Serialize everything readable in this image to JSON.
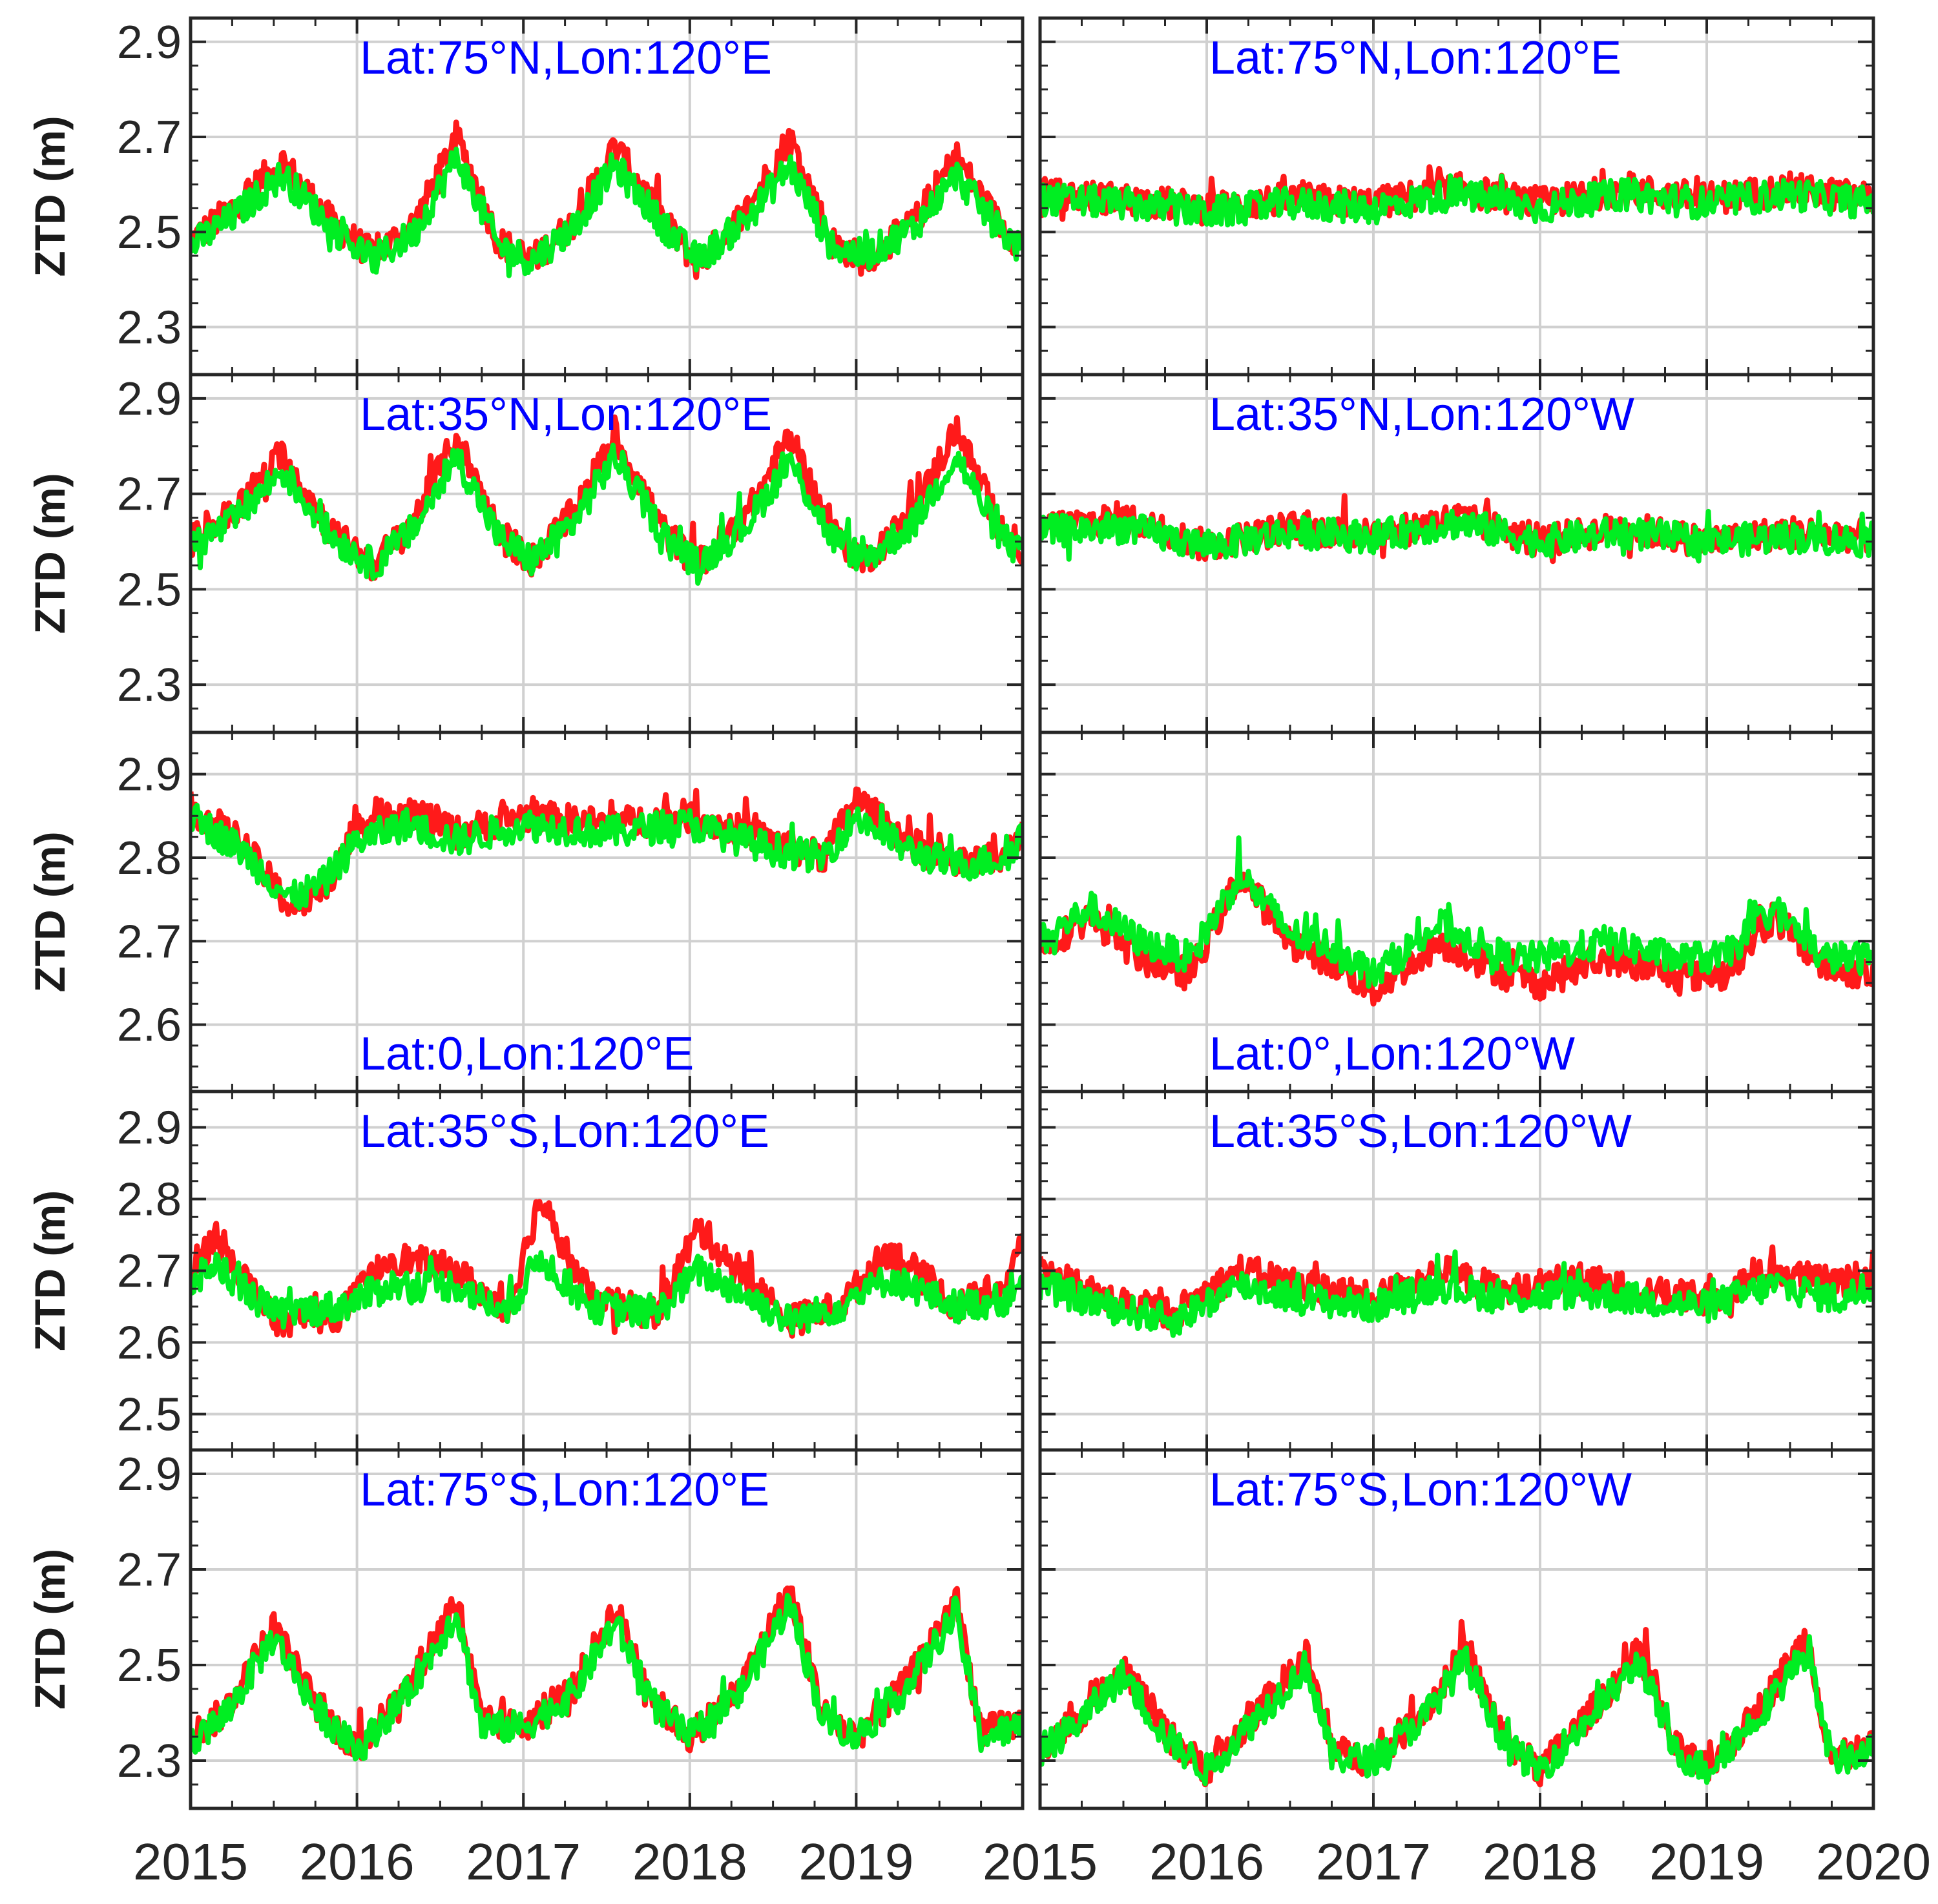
{
  "colors": {
    "red_series": "#ff1a1a",
    "green_series": "#00ee22",
    "title_text": "#0000ff",
    "axis": "#262626",
    "grid": "#d0d0d0"
  },
  "chart_data": [
    {
      "type": "line",
      "title": "Lat:75°N,Lon:120°E",
      "title_pos": "top",
      "ylabel": "ZTD (m)",
      "ylim": [
        2.2,
        2.95
      ],
      "yticks": [
        "2.3",
        "2.5",
        "2.7",
        "2.9"
      ],
      "xlim": [
        2015,
        2020
      ],
      "xticks": [
        "2015",
        "2016",
        "2017",
        "2018",
        "2019"
      ],
      "series": [
        {
          "name": "red",
          "x": [
            2015.0,
            2015.25,
            2015.55,
            2015.85,
            2016.1,
            2016.35,
            2016.6,
            2016.85,
            2017.05,
            2017.3,
            2017.55,
            2017.85,
            2018.05,
            2018.35,
            2018.6,
            2018.85,
            2019.05,
            2019.35,
            2019.6,
            2019.85,
            2020.0
          ],
          "y": [
            2.48,
            2.55,
            2.65,
            2.52,
            2.45,
            2.52,
            2.7,
            2.48,
            2.44,
            2.52,
            2.68,
            2.52,
            2.43,
            2.55,
            2.7,
            2.48,
            2.44,
            2.52,
            2.66,
            2.52,
            2.47
          ]
        },
        {
          "name": "green",
          "x": [
            2015.0,
            2015.25,
            2015.55,
            2015.85,
            2016.1,
            2016.35,
            2016.6,
            2016.85,
            2017.05,
            2017.3,
            2017.55,
            2017.85,
            2018.05,
            2018.35,
            2018.6,
            2018.85,
            2019.05,
            2019.35,
            2019.6,
            2019.85,
            2020.0
          ],
          "y": [
            2.47,
            2.53,
            2.62,
            2.51,
            2.44,
            2.5,
            2.66,
            2.47,
            2.44,
            2.51,
            2.64,
            2.51,
            2.44,
            2.53,
            2.64,
            2.47,
            2.45,
            2.51,
            2.62,
            2.51,
            2.46
          ]
        }
      ]
    },
    {
      "type": "line",
      "title": "Lat:75°N,Lon:120°E",
      "title_pos": "top",
      "ylabel": "",
      "ylim": [
        2.2,
        2.95
      ],
      "yticks": [
        "2.3",
        "2.5",
        "2.7",
        "2.9"
      ],
      "xlim": [
        2015,
        2020
      ],
      "xticks": [
        "2015",
        "2016",
        "2017",
        "2018",
        "2019",
        "2020"
      ],
      "series": [
        {
          "name": "red",
          "x": [
            2015.0,
            2015.5,
            2016.0,
            2016.5,
            2017.0,
            2017.5,
            2018.0,
            2018.5,
            2019.0,
            2019.5,
            2020.0
          ],
          "y": [
            2.58,
            2.57,
            2.55,
            2.57,
            2.56,
            2.59,
            2.56,
            2.59,
            2.57,
            2.59,
            2.57
          ]
        },
        {
          "name": "green",
          "x": [
            2015.0,
            2015.5,
            2016.0,
            2016.5,
            2017.0,
            2017.5,
            2018.0,
            2018.5,
            2019.0,
            2019.5,
            2020.0
          ],
          "y": [
            2.57,
            2.56,
            2.54,
            2.56,
            2.55,
            2.58,
            2.55,
            2.58,
            2.56,
            2.58,
            2.56
          ]
        }
      ]
    },
    {
      "type": "line",
      "title": "Lat:35°N,Lon:120°E",
      "title_pos": "top",
      "ylabel": "ZTD (m)",
      "ylim": [
        2.2,
        2.95
      ],
      "yticks": [
        "2.3",
        "2.5",
        "2.7",
        "2.9"
      ],
      "xlim": [
        2015,
        2020
      ],
      "xticks": [],
      "series": [
        {
          "name": "red",
          "x": [
            2015.0,
            2015.25,
            2015.55,
            2015.85,
            2016.1,
            2016.35,
            2016.6,
            2016.85,
            2017.05,
            2017.3,
            2017.55,
            2017.85,
            2018.05,
            2018.35,
            2018.6,
            2018.85,
            2019.05,
            2019.35,
            2019.6,
            2019.85,
            2020.0
          ],
          "y": [
            2.6,
            2.66,
            2.78,
            2.62,
            2.55,
            2.65,
            2.82,
            2.62,
            2.56,
            2.66,
            2.82,
            2.62,
            2.55,
            2.66,
            2.82,
            2.62,
            2.56,
            2.66,
            2.84,
            2.64,
            2.58
          ]
        },
        {
          "name": "green",
          "x": [
            2015.0,
            2015.25,
            2015.55,
            2015.85,
            2016.1,
            2016.35,
            2016.6,
            2016.85,
            2017.05,
            2017.3,
            2017.55,
            2017.85,
            2018.05,
            2018.35,
            2018.6,
            2018.85,
            2019.05,
            2019.35,
            2019.6,
            2019.85,
            2020.0
          ],
          "y": [
            2.59,
            2.64,
            2.75,
            2.61,
            2.55,
            2.63,
            2.78,
            2.61,
            2.56,
            2.64,
            2.78,
            2.61,
            2.55,
            2.64,
            2.77,
            2.61,
            2.56,
            2.64,
            2.78,
            2.62,
            2.57
          ]
        }
      ]
    },
    {
      "type": "line",
      "title": "Lat:35°N,Lon:120°W",
      "title_pos": "top",
      "ylabel": "",
      "ylim": [
        2.2,
        2.95
      ],
      "yticks": [
        "2.3",
        "2.5",
        "2.7",
        "2.9"
      ],
      "xlim": [
        2015,
        2020
      ],
      "xticks": [],
      "series": [
        {
          "name": "red",
          "x": [
            2015.0,
            2015.5,
            2016.0,
            2016.5,
            2017.0,
            2017.5,
            2018.0,
            2018.5,
            2019.0,
            2019.5,
            2020.0
          ],
          "y": [
            2.63,
            2.65,
            2.59,
            2.63,
            2.61,
            2.65,
            2.6,
            2.63,
            2.6,
            2.62,
            2.61
          ]
        },
        {
          "name": "green",
          "x": [
            2015.0,
            2015.5,
            2016.0,
            2016.5,
            2017.0,
            2017.5,
            2018.0,
            2018.5,
            2019.0,
            2019.5,
            2020.0
          ],
          "y": [
            2.62,
            2.63,
            2.59,
            2.62,
            2.61,
            2.64,
            2.6,
            2.62,
            2.6,
            2.61,
            2.6
          ]
        }
      ]
    },
    {
      "type": "line",
      "title": "Lat:0,Lon:120°E",
      "title_pos": "bottom",
      "ylabel": "ZTD (m)",
      "ylim": [
        2.52,
        2.95
      ],
      "yticks": [
        "2.6",
        "2.7",
        "2.8",
        "2.9"
      ],
      "xlim": [
        2015,
        2020
      ],
      "xticks": [],
      "series": [
        {
          "name": "red",
          "x": [
            2015.0,
            2015.3,
            2015.6,
            2015.8,
            2016.0,
            2016.3,
            2016.6,
            2017.0,
            2017.5,
            2018.0,
            2018.5,
            2018.8,
            2019.0,
            2019.3,
            2019.6,
            2019.9,
            2020.0
          ],
          "y": [
            2.86,
            2.82,
            2.74,
            2.76,
            2.84,
            2.86,
            2.83,
            2.85,
            2.84,
            2.85,
            2.82,
            2.8,
            2.87,
            2.82,
            2.79,
            2.8,
            2.84
          ]
        },
        {
          "name": "green",
          "x": [
            2015.0,
            2015.3,
            2015.6,
            2015.8,
            2016.0,
            2016.3,
            2016.6,
            2017.0,
            2017.5,
            2018.0,
            2018.5,
            2018.8,
            2019.0,
            2019.3,
            2019.6,
            2019.9,
            2020.0
          ],
          "y": [
            2.85,
            2.81,
            2.75,
            2.77,
            2.82,
            2.84,
            2.82,
            2.84,
            2.83,
            2.84,
            2.81,
            2.8,
            2.85,
            2.81,
            2.79,
            2.8,
            2.83
          ]
        }
      ]
    },
    {
      "type": "line",
      "title": "Lat:0°,Lon:120°W",
      "title_pos": "bottom",
      "ylabel": "",
      "ylim": [
        2.52,
        2.95
      ],
      "yticks": [
        "2.6",
        "2.7",
        "2.8",
        "2.9"
      ],
      "xlim": [
        2015,
        2020
      ],
      "xticks": [],
      "series": [
        {
          "name": "red",
          "x": [
            2015.0,
            2015.3,
            2015.6,
            2015.9,
            2016.2,
            2016.5,
            2016.8,
            2017.0,
            2017.4,
            2017.8,
            2018.0,
            2018.4,
            2018.8,
            2019.1,
            2019.4,
            2019.7,
            2020.0
          ],
          "y": [
            2.69,
            2.73,
            2.68,
            2.66,
            2.78,
            2.7,
            2.67,
            2.64,
            2.7,
            2.66,
            2.65,
            2.68,
            2.66,
            2.66,
            2.73,
            2.67,
            2.66
          ]
        },
        {
          "name": "green",
          "x": [
            2015.0,
            2015.3,
            2015.6,
            2015.9,
            2016.2,
            2016.5,
            2016.8,
            2017.0,
            2017.4,
            2017.8,
            2018.0,
            2018.4,
            2018.8,
            2019.1,
            2019.4,
            2019.7,
            2020.0
          ],
          "y": [
            2.7,
            2.74,
            2.7,
            2.68,
            2.78,
            2.71,
            2.69,
            2.66,
            2.72,
            2.68,
            2.68,
            2.7,
            2.68,
            2.68,
            2.74,
            2.68,
            2.68
          ]
        }
      ]
    },
    {
      "type": "line",
      "title": "Lat:35°S,Lon:120°E",
      "title_pos": "top",
      "ylabel": "ZTD (m)",
      "ylim": [
        2.45,
        2.95
      ],
      "yticks": [
        "2.5",
        "2.6",
        "2.7",
        "2.8",
        "2.9"
      ],
      "xlim": [
        2015,
        2020
      ],
      "xticks": [],
      "series": [
        {
          "name": "red",
          "x": [
            2015.0,
            2015.15,
            2015.5,
            2015.9,
            2016.2,
            2016.6,
            2016.9,
            2017.1,
            2017.4,
            2017.8,
            2018.05,
            2018.3,
            2018.6,
            2018.9,
            2019.2,
            2019.6,
            2019.9,
            2020.0
          ],
          "y": [
            2.7,
            2.75,
            2.63,
            2.64,
            2.72,
            2.7,
            2.64,
            2.8,
            2.66,
            2.64,
            2.76,
            2.7,
            2.63,
            2.65,
            2.73,
            2.65,
            2.68,
            2.74
          ]
        },
        {
          "name": "green",
          "x": [
            2015.0,
            2015.15,
            2015.5,
            2015.9,
            2016.2,
            2016.6,
            2016.9,
            2017.1,
            2017.4,
            2017.8,
            2018.05,
            2018.3,
            2018.6,
            2018.9,
            2019.2,
            2019.6,
            2019.9,
            2020.0
          ],
          "y": [
            2.68,
            2.71,
            2.64,
            2.65,
            2.68,
            2.68,
            2.64,
            2.72,
            2.65,
            2.64,
            2.7,
            2.67,
            2.63,
            2.65,
            2.69,
            2.65,
            2.66,
            2.7
          ]
        }
      ]
    },
    {
      "type": "line",
      "title": "Lat:35°S,Lon:120°W",
      "title_pos": "top",
      "ylabel": "",
      "ylim": [
        2.45,
        2.95
      ],
      "yticks": [
        "2.5",
        "2.6",
        "2.7",
        "2.8",
        "2.9"
      ],
      "xlim": [
        2015,
        2020
      ],
      "xticks": [],
      "series": [
        {
          "name": "red",
          "x": [
            2015.0,
            2015.4,
            2015.8,
            2016.2,
            2016.6,
            2017.0,
            2017.4,
            2017.8,
            2018.2,
            2018.6,
            2019.0,
            2019.4,
            2019.8,
            2020.0
          ],
          "y": [
            2.7,
            2.66,
            2.64,
            2.7,
            2.68,
            2.66,
            2.7,
            2.67,
            2.69,
            2.67,
            2.66,
            2.7,
            2.68,
            2.7
          ]
        },
        {
          "name": "green",
          "x": [
            2015.0,
            2015.4,
            2015.8,
            2016.2,
            2016.6,
            2017.0,
            2017.4,
            2017.8,
            2018.2,
            2018.6,
            2019.0,
            2019.4,
            2019.8,
            2020.0
          ],
          "y": [
            2.68,
            2.65,
            2.63,
            2.68,
            2.66,
            2.65,
            2.68,
            2.66,
            2.67,
            2.66,
            2.65,
            2.68,
            2.66,
            2.68
          ]
        }
      ]
    },
    {
      "type": "line",
      "title": "Lat:75°S,Lon:120°E",
      "title_pos": "top",
      "ylabel": "ZTD (m)",
      "ylim": [
        2.2,
        2.95
      ],
      "yticks": [
        "2.3",
        "2.5",
        "2.7",
        "2.9"
      ],
      "xlim": [
        2015,
        2020
      ],
      "xticks": [],
      "series": [
        {
          "name": "red",
          "x": [
            2015.0,
            2015.2,
            2015.5,
            2015.75,
            2016.0,
            2016.3,
            2016.6,
            2016.75,
            2017.0,
            2017.3,
            2017.55,
            2017.8,
            2018.0,
            2018.3,
            2018.6,
            2018.8,
            2019.0,
            2019.3,
            2019.6,
            2019.75,
            2020.0
          ],
          "y": [
            2.35,
            2.4,
            2.58,
            2.42,
            2.32,
            2.45,
            2.64,
            2.38,
            2.37,
            2.45,
            2.62,
            2.42,
            2.35,
            2.45,
            2.66,
            2.4,
            2.35,
            2.46,
            2.64,
            2.36,
            2.38
          ]
        },
        {
          "name": "green",
          "x": [
            2015.0,
            2015.2,
            2015.5,
            2015.75,
            2016.0,
            2016.3,
            2016.6,
            2016.75,
            2017.0,
            2017.3,
            2017.55,
            2017.8,
            2018.0,
            2018.3,
            2018.6,
            2018.8,
            2019.0,
            2019.3,
            2019.6,
            2019.75,
            2020.0
          ],
          "y": [
            2.34,
            2.39,
            2.56,
            2.41,
            2.32,
            2.44,
            2.61,
            2.37,
            2.37,
            2.44,
            2.59,
            2.41,
            2.35,
            2.44,
            2.63,
            2.39,
            2.35,
            2.45,
            2.61,
            2.35,
            2.37
          ]
        }
      ]
    },
    {
      "type": "line",
      "title": "Lat:75°S,Lon:120°W",
      "title_pos": "top",
      "ylabel": "",
      "ylim": [
        2.2,
        2.95
      ],
      "yticks": [
        "2.3",
        "2.5",
        "2.7",
        "2.9"
      ],
      "xlim": [
        2015,
        2020
      ],
      "xticks": [],
      "series": [
        {
          "name": "red",
          "x": [
            2015.0,
            2015.2,
            2015.5,
            2015.75,
            2016.0,
            2016.3,
            2016.6,
            2016.75,
            2017.0,
            2017.3,
            2017.55,
            2017.8,
            2018.0,
            2018.3,
            2018.6,
            2018.8,
            2019.0,
            2019.3,
            2019.6,
            2019.75,
            2020.0
          ],
          "y": [
            2.33,
            2.38,
            2.5,
            2.36,
            2.28,
            2.4,
            2.52,
            2.32,
            2.3,
            2.4,
            2.53,
            2.34,
            2.28,
            2.4,
            2.53,
            2.33,
            2.28,
            2.4,
            2.56,
            2.3,
            2.33
          ]
        },
        {
          "name": "green",
          "x": [
            2015.0,
            2015.2,
            2015.5,
            2015.75,
            2016.0,
            2016.3,
            2016.6,
            2016.75,
            2017.0,
            2017.3,
            2017.55,
            2017.8,
            2018.0,
            2018.3,
            2018.6,
            2018.8,
            2019.0,
            2019.3,
            2019.6,
            2019.75,
            2020.0
          ],
          "y": [
            2.32,
            2.37,
            2.48,
            2.35,
            2.28,
            2.39,
            2.5,
            2.31,
            2.3,
            2.39,
            2.51,
            2.33,
            2.28,
            2.39,
            2.51,
            2.32,
            2.28,
            2.39,
            2.53,
            2.3,
            2.32
          ]
        }
      ]
    }
  ]
}
